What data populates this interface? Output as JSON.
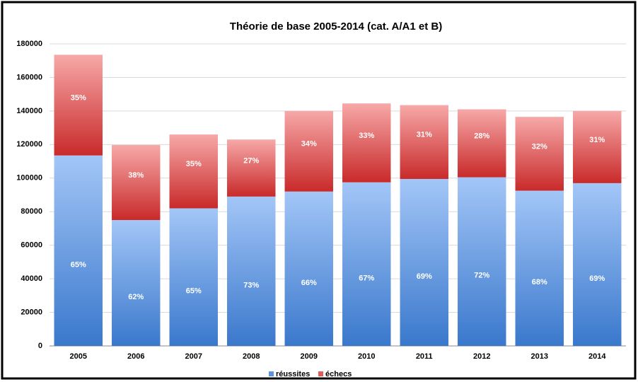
{
  "chart_data": {
    "type": "stacked_bar",
    "title": "Théorie de base 2005-2014  (cat. A/A1 et B)",
    "categories": [
      "2005",
      "2006",
      "2007",
      "2008",
      "2009",
      "2010",
      "2011",
      "2012",
      "2013",
      "2014"
    ],
    "series": [
      {
        "name": "réussites",
        "color": "#5b93e0",
        "values": [
          113500,
          75000,
          82000,
          89000,
          92000,
          97500,
          99500,
          100500,
          92500,
          97000
        ],
        "percent": {
          "values": [
            65,
            62,
            65,
            73,
            66,
            67,
            69,
            72,
            68,
            69
          ],
          "value_labels": [
            "65%",
            "62%",
            "65%",
            "73%",
            "66%",
            "67%",
            "69%",
            "72%",
            "68%",
            "69%"
          ]
        }
      },
      {
        "name": "échecs",
        "color": "#e05a5a",
        "values": [
          60000,
          44700,
          44000,
          34000,
          48000,
          47000,
          44000,
          40500,
          44000,
          43000
        ],
        "percent": {
          "values": [
            35,
            38,
            35,
            27,
            34,
            33,
            31,
            28,
            32,
            31
          ],
          "value_labels": [
            "35%",
            "38%",
            "35%",
            "27%",
            "34%",
            "33%",
            "31%",
            "28%",
            "32%",
            "31%"
          ]
        }
      }
    ],
    "ylim": [
      0,
      180000
    ],
    "yticks": [
      0,
      20000,
      40000,
      60000,
      80000,
      100000,
      120000,
      140000,
      160000,
      180000
    ],
    "grid": true,
    "legend": "bottom"
  }
}
